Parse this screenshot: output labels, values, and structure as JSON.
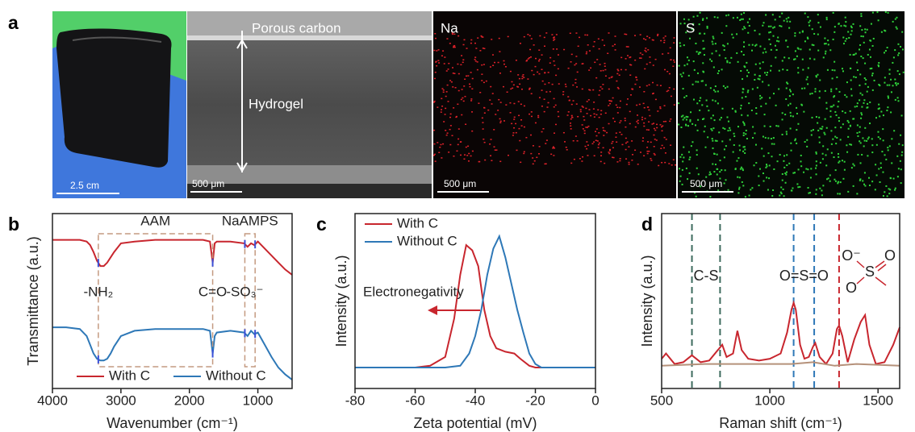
{
  "panel_a": {
    "label": "a",
    "photo": {
      "scale_bar": "2.5 cm"
    },
    "sem": {
      "top_layer": "Porous carbon",
      "middle_layer": "Hydrogel",
      "scale_bar": "500 μm"
    },
    "na_map": {
      "element": "Na",
      "scale_bar": "500 μm"
    },
    "s_map": {
      "element": "S",
      "scale_bar": "500 μm"
    }
  },
  "chart_data": [
    {
      "type": "line",
      "label": "b",
      "xlabel": "Wavenumber (cm⁻¹)",
      "ylabel": "Transmittance (a.u.)",
      "xlim": [
        4000,
        500
      ],
      "xticks": [
        4000,
        3000,
        2000,
        1000
      ],
      "ylim": [
        0,
        1
      ],
      "legend": "lower center",
      "series": [
        {
          "name": "With C",
          "color": "#c8262e",
          "x": [
            4000,
            3800,
            3600,
            3500,
            3450,
            3400,
            3350,
            3300,
            3250,
            3200,
            3150,
            3100,
            3000,
            2800,
            2500,
            2000,
            1800,
            1700,
            1660,
            1630,
            1600,
            1400,
            1200,
            1150,
            1100,
            1050,
            1000,
            900,
            800,
            700,
            600,
            500
          ],
          "values": [
            0.85,
            0.85,
            0.85,
            0.84,
            0.82,
            0.78,
            0.73,
            0.7,
            0.7,
            0.72,
            0.75,
            0.78,
            0.83,
            0.84,
            0.85,
            0.85,
            0.85,
            0.84,
            0.72,
            0.83,
            0.84,
            0.84,
            0.83,
            0.81,
            0.83,
            0.82,
            0.84,
            0.8,
            0.76,
            0.72,
            0.68,
            0.65
          ]
        },
        {
          "name": "Without C",
          "color": "#2e78b7",
          "x": [
            4000,
            3800,
            3600,
            3500,
            3450,
            3400,
            3350,
            3300,
            3250,
            3200,
            3150,
            3100,
            3000,
            2800,
            2500,
            2000,
            1800,
            1700,
            1660,
            1630,
            1600,
            1400,
            1200,
            1150,
            1100,
            1050,
            1000,
            900,
            800,
            700,
            600,
            500
          ],
          "values": [
            0.35,
            0.35,
            0.34,
            0.3,
            0.25,
            0.2,
            0.17,
            0.16,
            0.16,
            0.17,
            0.2,
            0.24,
            0.3,
            0.33,
            0.34,
            0.34,
            0.34,
            0.33,
            0.2,
            0.3,
            0.32,
            0.33,
            0.32,
            0.3,
            0.33,
            0.31,
            0.32,
            0.25,
            0.18,
            0.12,
            0.08,
            0.05
          ]
        }
      ],
      "annotations": [
        {
          "text": "AAM",
          "x_range": [
            3330,
            1660
          ]
        },
        {
          "text": "NaAMPS",
          "x_range": [
            1190,
            1040
          ]
        },
        {
          "text": "-NH₂",
          "x": 3330
        },
        {
          "text": "C=O",
          "x": 1660
        },
        {
          "text": "-SO₃⁻",
          "x": 1190
        }
      ]
    },
    {
      "type": "line",
      "label": "c",
      "xlabel": "Zeta potential (mV)",
      "ylabel": "Intensity (a.u.)",
      "xlim": [
        -80,
        0
      ],
      "xticks": [
        -80,
        -60,
        -40,
        -20,
        0
      ],
      "ylim": [
        0,
        1
      ],
      "legend": "upper left",
      "annotation": "Electronegativity",
      "series": [
        {
          "name": "With C",
          "color": "#c8262e",
          "x": [
            -80,
            -60,
            -55,
            -50,
            -47,
            -45,
            -43,
            -41,
            -39,
            -37,
            -35,
            -33,
            -30,
            -27,
            -25,
            -22,
            -20,
            -15,
            0
          ],
          "values": [
            0.12,
            0.12,
            0.13,
            0.18,
            0.4,
            0.65,
            0.82,
            0.79,
            0.7,
            0.45,
            0.3,
            0.23,
            0.21,
            0.2,
            0.17,
            0.13,
            0.12,
            0.12,
            0.12
          ]
        },
        {
          "name": "Without C",
          "color": "#2e78b7",
          "x": [
            -80,
            -50,
            -45,
            -42,
            -40,
            -38,
            -36,
            -34,
            -32,
            -30,
            -28,
            -26,
            -24,
            -22,
            -20,
            -18,
            0
          ],
          "values": [
            0.12,
            0.12,
            0.13,
            0.2,
            0.3,
            0.45,
            0.65,
            0.8,
            0.87,
            0.75,
            0.6,
            0.45,
            0.32,
            0.2,
            0.14,
            0.12,
            0.12
          ]
        }
      ]
    },
    {
      "type": "line",
      "label": "d",
      "xlabel": "Raman shift (cm⁻¹)",
      "ylabel": "Intensity (a.u.)",
      "xlim": [
        500,
        1600
      ],
      "xticks": [
        500,
        1000,
        1500
      ],
      "ylim": [
        0,
        1
      ],
      "vlines": [
        {
          "x": 640,
          "color": "#3d6b5e"
        },
        {
          "x": 770,
          "color": "#3d6b5e"
        },
        {
          "x": 1110,
          "color": "#2e78b7"
        },
        {
          "x": 1205,
          "color": "#2e78b7"
        },
        {
          "x": 1320,
          "color": "#c8262e"
        }
      ],
      "annotations": [
        {
          "text": "C-S",
          "color": "#3d6b5e"
        },
        {
          "text": "O=S=O",
          "color": "#2e78b7"
        }
      ],
      "structure": [
        "O⁻",
        "S",
        "O",
        "O"
      ],
      "series": [
        {
          "color": "#c8262e",
          "x": [
            500,
            520,
            560,
            600,
            640,
            680,
            720,
            760,
            780,
            800,
            830,
            850,
            870,
            900,
            950,
            1000,
            1050,
            1080,
            1100,
            1110,
            1120,
            1140,
            1160,
            1180,
            1200,
            1210,
            1230,
            1260,
            1290,
            1310,
            1320,
            1335,
            1360,
            1390,
            1420,
            1440,
            1460,
            1490,
            1530,
            1570,
            1600
          ],
          "values": [
            0.17,
            0.2,
            0.14,
            0.15,
            0.19,
            0.15,
            0.16,
            0.22,
            0.25,
            0.18,
            0.2,
            0.33,
            0.22,
            0.17,
            0.16,
            0.17,
            0.2,
            0.32,
            0.45,
            0.49,
            0.45,
            0.25,
            0.17,
            0.18,
            0.24,
            0.26,
            0.18,
            0.14,
            0.2,
            0.34,
            0.36,
            0.3,
            0.15,
            0.28,
            0.38,
            0.42,
            0.25,
            0.14,
            0.15,
            0.25,
            0.35
          ]
        },
        {
          "color": "#b5917a",
          "x": [
            500,
            700,
            900,
            1100,
            1200,
            1300,
            1400,
            1600
          ],
          "values": [
            0.13,
            0.14,
            0.14,
            0.14,
            0.15,
            0.13,
            0.14,
            0.13
          ]
        }
      ]
    }
  ]
}
